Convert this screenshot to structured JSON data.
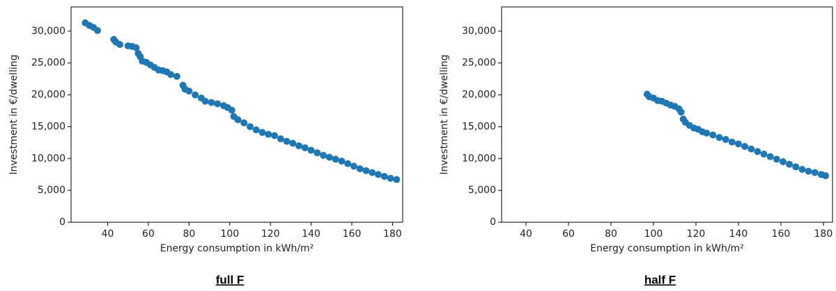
{
  "chart_data": [
    {
      "type": "scatter",
      "caption": "full F",
      "xlabel": "Energy consumption in kWh/m²",
      "ylabel": "Investment in €/dwelling",
      "color": "#1f77b4",
      "x": [
        29,
        31,
        33,
        35,
        43,
        44,
        46,
        50,
        52,
        54,
        55,
        56,
        57,
        59,
        61,
        63,
        65,
        67,
        69,
        71,
        74,
        77,
        78,
        80,
        83,
        86,
        88,
        91,
        94,
        97,
        99,
        101,
        102,
        104,
        107,
        110,
        113,
        116,
        119,
        122,
        125,
        128,
        131,
        134,
        137,
        140,
        143,
        146,
        149,
        152,
        155,
        158,
        161,
        164,
        167,
        170,
        173,
        176,
        179,
        182
      ],
      "values": [
        31300,
        30900,
        30600,
        30100,
        28700,
        28300,
        27900,
        27700,
        27600,
        27400,
        26500,
        26000,
        25300,
        25100,
        24700,
        24300,
        23900,
        23800,
        23600,
        23200,
        22900,
        21500,
        20900,
        20600,
        20000,
        19500,
        19000,
        18800,
        18600,
        18300,
        18000,
        17600,
        16600,
        16100,
        15600,
        15000,
        14500,
        14100,
        13800,
        13600,
        13100,
        12700,
        12400,
        12000,
        11700,
        11300,
        10900,
        10500,
        10200,
        9900,
        9600,
        9200,
        8800,
        8400,
        8100,
        7800,
        7500,
        7200,
        6900,
        6700
      ],
      "xlim": [
        22,
        185
      ],
      "xticks": [
        40,
        60,
        80,
        100,
        120,
        140,
        160,
        180
      ],
      "ylim": [
        0,
        33800
      ],
      "yticks": [
        0,
        {
          "value": 5000,
          "label": "5,000"
        },
        {
          "value": 10000,
          "label": "10,000"
        },
        {
          "value": 15000,
          "label": "15,000"
        },
        {
          "value": 20000,
          "label": "20,000"
        },
        {
          "value": 25000,
          "label": "25,000"
        },
        {
          "value": 30000,
          "label": "30,000"
        }
      ]
    },
    {
      "type": "scatter",
      "caption": "half F",
      "xlabel": "Energy consumption in kWh/m²",
      "ylabel": "Investment in €/dwelling",
      "color": "#1f77b4",
      "x": [
        97,
        98,
        100,
        102,
        104,
        106,
        108,
        110,
        112,
        113,
        114,
        115,
        117,
        119,
        121,
        123,
        125,
        128,
        131,
        134,
        137,
        140,
        143,
        146,
        149,
        152,
        155,
        158,
        161,
        164,
        167,
        170,
        173,
        176,
        179,
        181
      ],
      "values": [
        20100,
        19700,
        19500,
        19100,
        19000,
        18700,
        18400,
        18200,
        17800,
        17300,
        16200,
        15700,
        15200,
        14800,
        14600,
        14200,
        14000,
        13700,
        13300,
        13000,
        12600,
        12300,
        11900,
        11500,
        11100,
        10700,
        10300,
        9900,
        9500,
        9100,
        8700,
        8300,
        8000,
        7800,
        7500,
        7300
      ],
      "xlim": [
        28.5,
        184.3
      ],
      "xticks": [
        40,
        60,
        80,
        100,
        120,
        140,
        160,
        180
      ],
      "ylim": [
        0,
        33800
      ],
      "yticks": [
        0,
        {
          "value": 5000,
          "label": "5,000"
        },
        {
          "value": 10000,
          "label": "10,000"
        },
        {
          "value": 15000,
          "label": "15,000"
        },
        {
          "value": 20000,
          "label": "20,000"
        },
        {
          "value": 25000,
          "label": "25,000"
        },
        {
          "value": 30000,
          "label": "30,000"
        }
      ]
    }
  ]
}
